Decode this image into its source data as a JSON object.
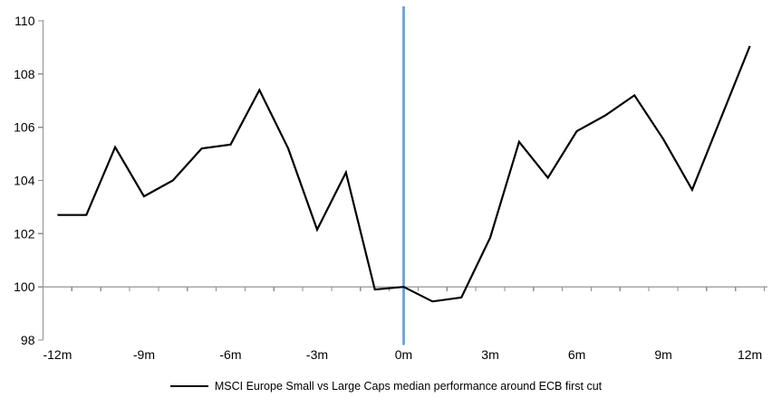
{
  "chart_data": {
    "type": "line",
    "title": "",
    "xlabel": "",
    "ylabel": "",
    "categories": [
      "-12m",
      "-11m",
      "-10m",
      "-9m",
      "-8m",
      "-7m",
      "-6m",
      "-5m",
      "-4m",
      "-3m",
      "-2m",
      "-1m",
      "0m",
      "1m",
      "2m",
      "3m",
      "4m",
      "5m",
      "6m",
      "7m",
      "8m",
      "9m",
      "10m",
      "11m",
      "12m"
    ],
    "series": [
      {
        "name": "MSCI Europe Small vs Large Caps median performance around ECB first cut",
        "values": [
          102.7,
          102.7,
          105.25,
          103.4,
          104.0,
          105.2,
          105.35,
          107.4,
          105.2,
          102.15,
          104.3,
          99.9,
          100.0,
          99.45,
          99.6,
          101.85,
          105.45,
          104.1,
          105.85,
          106.45,
          107.2,
          105.55,
          103.65,
          106.35,
          109.05
        ]
      }
    ],
    "ylim": [
      98,
      110
    ],
    "y_ticks": [
      110,
      108,
      106,
      104,
      102,
      100,
      98
    ],
    "x_tick_labels": [
      "-12m",
      "-9m",
      "-6m",
      "-3m",
      "0m",
      "3m",
      "6m",
      "9m",
      "12m"
    ],
    "x_label_every": 3,
    "baseline_value": 100,
    "event_line_category": "0m",
    "grid": "off",
    "legend_position": "bottom",
    "colors": {
      "series_line": "#000000",
      "event_line": "#6f9fd8",
      "baseline": "#a6a6a6",
      "axis": "#8e8e8e",
      "text": "#000000"
    }
  },
  "legend": {
    "label": "MSCI Europe Small vs Large Caps median performance around ECB first cut"
  }
}
